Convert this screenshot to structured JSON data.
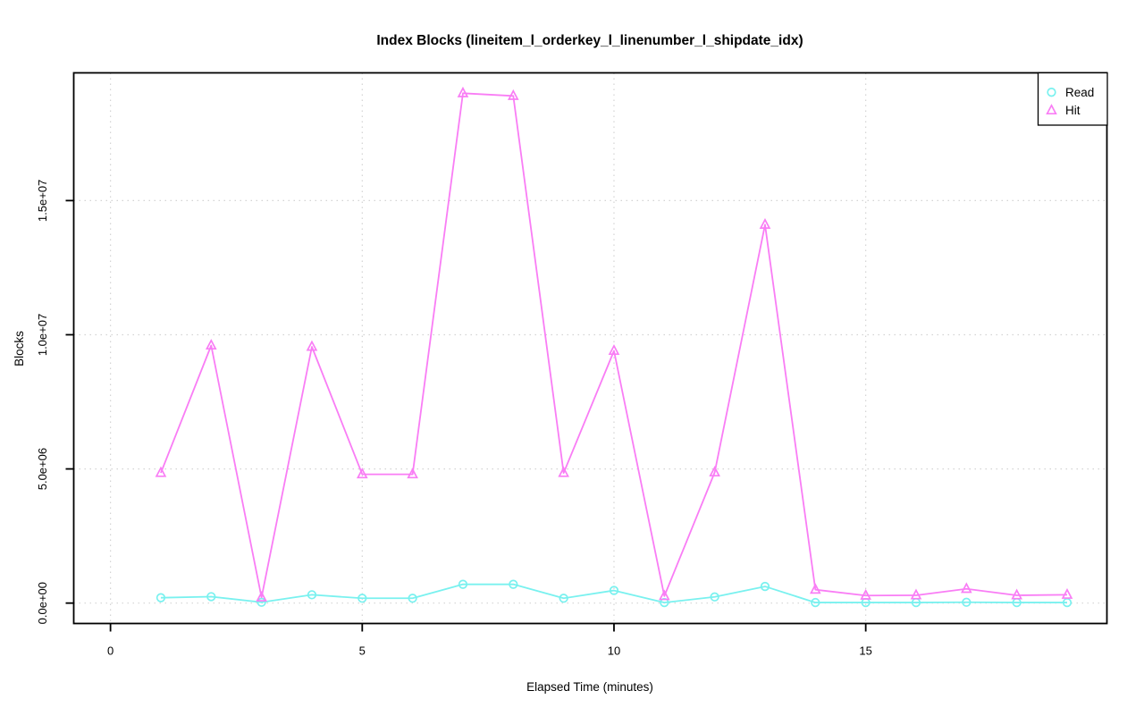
{
  "title": "Index Blocks (lineitem_l_orderkey_l_linenumber_l_shipdate_idx)",
  "colors": {
    "background": "#ffffff",
    "grid": "#d3d3d3",
    "axis": "#000000",
    "read": "#79f1ef",
    "hit": "#f97df5"
  },
  "chart_data": {
    "type": "line",
    "title": "Index Blocks (lineitem_l_orderkey_l_linenumber_l_shipdate_idx)",
    "xlabel": "Elapsed Time (minutes)",
    "ylabel": "Blocks",
    "x": [
      1,
      2,
      3,
      4,
      5,
      6,
      7,
      8,
      9,
      10,
      11,
      12,
      13,
      14,
      15,
      16,
      17,
      18,
      19
    ],
    "series": [
      {
        "name": "Read",
        "marker": "circle",
        "color": "#79f1ef",
        "values": [
          200000,
          240000,
          30000,
          310000,
          180000,
          180000,
          700000,
          700000,
          180000,
          470000,
          20000,
          230000,
          620000,
          20000,
          20000,
          20000,
          30000,
          20000,
          20000
        ]
      },
      {
        "name": "Hit",
        "marker": "triangle",
        "color": "#f97df5",
        "values": [
          4850000,
          9600000,
          210000,
          9550000,
          4800000,
          4800000,
          19000000,
          18900000,
          4850000,
          9400000,
          260000,
          4870000,
          14100000,
          500000,
          280000,
          290000,
          530000,
          290000,
          310000
        ]
      }
    ],
    "x_ticks": [
      {
        "value": 0,
        "label": "0"
      },
      {
        "value": 5,
        "label": "5"
      },
      {
        "value": 10,
        "label": "10"
      },
      {
        "value": 15,
        "label": "15"
      }
    ],
    "y_ticks": [
      {
        "value": 0,
        "label": "0.0e+00"
      },
      {
        "value": 5000000,
        "label": "5.0e+06"
      },
      {
        "value": 10000000,
        "label": "1.0e+07"
      },
      {
        "value": 15000000,
        "label": "1.5e+07"
      }
    ],
    "xlim": [
      -0.73,
      19.79
    ],
    "ylim": [
      -760000,
      19760000
    ],
    "grid": true,
    "grid_style": "dotted",
    "legend_position": "top-right",
    "legend": [
      "Read",
      "Hit"
    ]
  }
}
